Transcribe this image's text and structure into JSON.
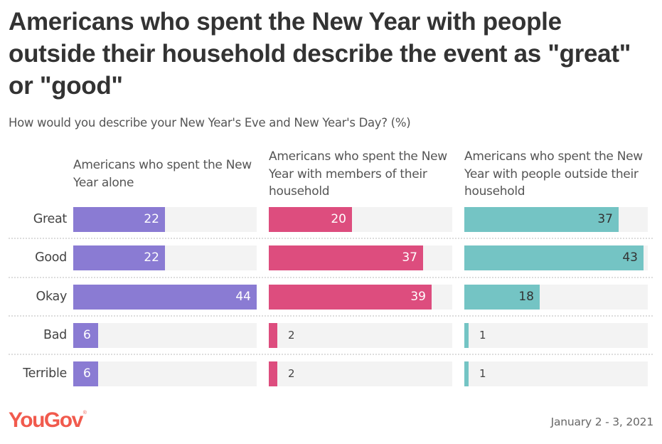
{
  "header": {
    "title": "Americans who spent the New Year with people outside their household describe the event as \"great\" or \"good\"",
    "subtitle": "How would you describe your New Year's Eve and New Year's Day? (%)"
  },
  "footer": {
    "logo": "YouGov",
    "logo_mark": "®",
    "date": "January 2 - 3, 2021"
  },
  "colors": {
    "alone": "#8a7bd3",
    "household": "#dd4d7e",
    "outside": "#74c4c4",
    "track": "#f3f3f3"
  },
  "chart_data": {
    "type": "bar",
    "orientation": "horizontal",
    "title": "Americans who spent the New Year with people outside their household describe the event as \"great\" or \"good\"",
    "subtitle": "How would you describe your New Year's Eve and New Year's Day? (%)",
    "categories": [
      "Great",
      "Good",
      "Okay",
      "Bad",
      "Terrible"
    ],
    "series": [
      {
        "name": "Americans who spent the New Year alone",
        "values": [
          22,
          22,
          44,
          6,
          6
        ]
      },
      {
        "name": "Americans who spent the New Year with members of their household",
        "values": [
          20,
          37,
          39,
          2,
          2
        ]
      },
      {
        "name": "Americans who spent the New Year with people outside their household",
        "values": [
          37,
          43,
          18,
          1,
          1
        ]
      }
    ],
    "xlim": [
      0,
      44
    ],
    "grid": false,
    "legend": "panel headers",
    "unit": "%"
  }
}
